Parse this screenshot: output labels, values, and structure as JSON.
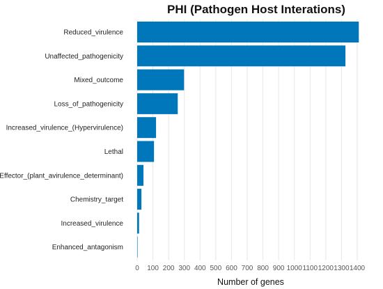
{
  "chart_data": {
    "type": "bar",
    "orientation": "horizontal",
    "title": "PHI (Pathogen Host Interations)",
    "xlabel": "Number of genes",
    "ylabel": "",
    "categories": [
      "Reduced_virulence",
      "Unaffected_pathogenicity",
      "Mixed_outcome",
      "Loss_of_pathogenicity",
      "Increased_virulence_(Hypervirulence)",
      "Lethal",
      "Effector_(plant_avirulence_determinant)",
      "Chemistry_target",
      "Increased_virulence",
      "Enhanced_antagonism"
    ],
    "values": [
      1410,
      1325,
      298,
      258,
      120,
      107,
      40,
      27,
      12,
      2
    ],
    "xlim": [
      0,
      1400
    ],
    "xticks": [
      "0",
      "100",
      "200",
      "300",
      "400",
      "500",
      "600",
      "700",
      "800",
      "900",
      "1000",
      "1100",
      "1200",
      "1300",
      "1400"
    ],
    "bar_color": "#0077BB",
    "grid": true,
    "legend": "none"
  }
}
